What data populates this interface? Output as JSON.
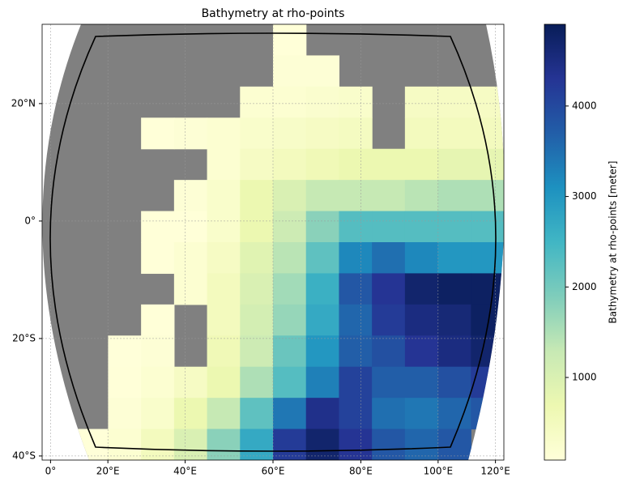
{
  "chart_data": {
    "type": "heatmap",
    "title": "Bathymetry at rho-points",
    "colorbar_label": "Bathymetry at rho-points [meter]",
    "xlim": [
      -4,
      124
    ],
    "ylim": [
      -40.7,
      33.5
    ],
    "xticks": [
      {
        "value": 0,
        "label": "0°"
      },
      {
        "value": 20,
        "label": "20°E"
      },
      {
        "value": 40,
        "label": "40°E"
      },
      {
        "value": 60,
        "label": "60°E"
      },
      {
        "value": 80,
        "label": "80°E"
      },
      {
        "value": 100,
        "label": "100°E"
      },
      {
        "value": 120,
        "label": "120°E"
      }
    ],
    "yticks": [
      {
        "value": 20,
        "label": "20°N"
      },
      {
        "value": 0,
        "label": "0°"
      },
      {
        "value": -20,
        "label": "20°S"
      },
      {
        "value": -40,
        "label": "40°S"
      }
    ],
    "grid": true,
    "land_color": "#808080",
    "colormap": [
      "#ffffd9",
      "#edf8b1",
      "#c7e9b4",
      "#7fcdbb",
      "#41b6c4",
      "#1d91c0",
      "#225ea8",
      "#253494",
      "#081d58"
    ],
    "clim": [
      87,
      4903
    ],
    "colorbar_ticks": [
      1000,
      2000,
      3000,
      4000
    ],
    "values": [
      [
        null,
        null,
        null,
        null,
        null,
        null,
        null,
        100,
        null,
        null,
        null,
        null,
        null,
        null
      ],
      [
        null,
        null,
        null,
        null,
        null,
        null,
        null,
        150,
        150,
        null,
        null,
        null,
        null,
        null
      ],
      [
        null,
        null,
        null,
        null,
        null,
        null,
        200,
        200,
        250,
        300,
        null,
        400,
        400,
        400
      ],
      [
        null,
        null,
        null,
        100,
        150,
        200,
        300,
        350,
        400,
        450,
        null,
        500,
        500,
        500
      ],
      [
        null,
        null,
        null,
        null,
        null,
        200,
        400,
        500,
        600,
        700,
        700,
        700,
        800,
        800
      ],
      [
        null,
        null,
        null,
        null,
        150,
        300,
        700,
        1000,
        1300,
        1300,
        1300,
        1400,
        1500,
        1500
      ],
      [
        null,
        null,
        null,
        100,
        100,
        300,
        700,
        1200,
        1800,
        2300,
        2300,
        2300,
        2300,
        2300
      ],
      [
        null,
        null,
        null,
        100,
        200,
        400,
        900,
        1400,
        2200,
        3200,
        3500,
        3200,
        3000,
        3000
      ],
      [
        null,
        null,
        null,
        null,
        200,
        500,
        1000,
        1600,
        2600,
        3800,
        4300,
        4700,
        4800,
        4800
      ],
      [
        null,
        null,
        null,
        100,
        null,
        500,
        1100,
        1700,
        2700,
        3600,
        4200,
        4500,
        4600,
        4800
      ],
      [
        null,
        null,
        50,
        150,
        null,
        600,
        1200,
        2100,
        3000,
        3700,
        3900,
        4300,
        4500,
        4700
      ],
      [
        null,
        null,
        100,
        200,
        400,
        700,
        1500,
        2300,
        3300,
        4100,
        3700,
        3700,
        3900,
        4200
      ],
      [
        null,
        null,
        150,
        300,
        700,
        1300,
        2200,
        3400,
        4400,
        4100,
        3500,
        3400,
        3600,
        3800
      ],
      [
        null,
        100,
        200,
        500,
        1000,
        1800,
        2700,
        4200,
        4700,
        4300,
        3800,
        3600,
        3800,
        null
      ]
    ]
  }
}
